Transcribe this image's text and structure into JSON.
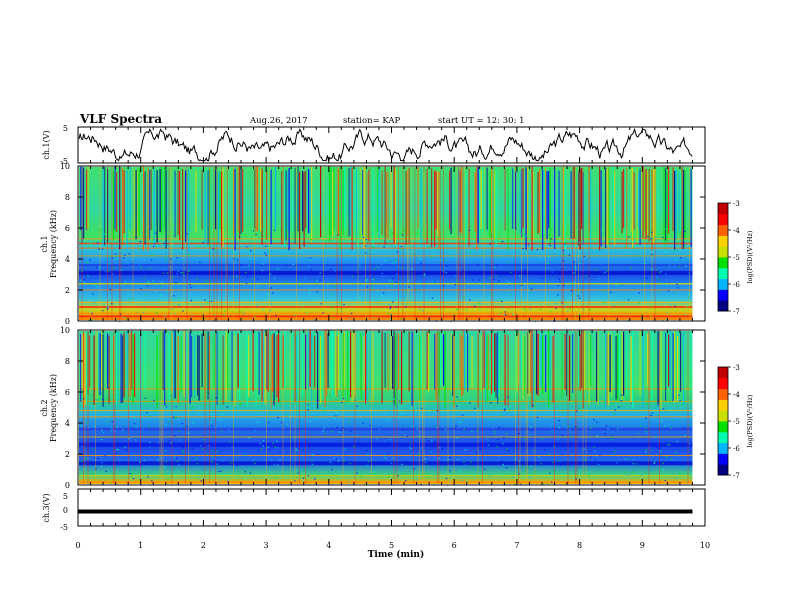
{
  "header": {
    "title": "VLF Spectra",
    "date": "Aug.26, 2017",
    "station": "station= KAP",
    "start": "start UT =   12: 30: 1"
  },
  "chart_data": [
    {
      "type": "line",
      "ylabel": "ch.1(V)",
      "ylim": [
        -5,
        5
      ],
      "yticks": [
        "5",
        "-5"
      ],
      "xlim": [
        0,
        10
      ]
    },
    {
      "type": "heatmap",
      "ylabel": "ch.1\nFrequency (kHz)",
      "ylabel_lines": [
        "ch.1",
        "Frequency (kHz)"
      ],
      "ylim": [
        0,
        10
      ],
      "yticks": [
        "0",
        "2",
        "4",
        "6",
        "8",
        "10"
      ],
      "xlim": [
        0,
        10
      ],
      "colorbar": {
        "label": "log(PSD)(V²/Hz)",
        "ticks": [
          "-3",
          "-4",
          "-5",
          "-6",
          "-7"
        ]
      }
    },
    {
      "type": "heatmap",
      "ylabel": "ch.2\nFrequency (kHz)",
      "ylabel_lines": [
        "ch.2",
        "Frequency (kHz)"
      ],
      "ylim": [
        0,
        10
      ],
      "yticks": [
        "0",
        "2",
        "4",
        "6",
        "8",
        "10"
      ],
      "xlim": [
        0,
        10
      ],
      "colorbar": {
        "label": "log(PSD)(V²/Hz)",
        "ticks": [
          "-3",
          "-4",
          "-5",
          "-6",
          "-7"
        ]
      }
    },
    {
      "type": "line",
      "ylabel": "ch.3(V)",
      "ylim": [
        -5,
        5
      ],
      "yticks": [
        "5",
        "0",
        "-5"
      ],
      "xlim": [
        0,
        10
      ],
      "constant_value": 0
    }
  ],
  "xaxis": {
    "label": "Time  (min)",
    "ticks": [
      "0",
      "1",
      "2",
      "3",
      "4",
      "5",
      "6",
      "7",
      "8",
      "9",
      "10"
    ]
  },
  "colors": {
    "colormap": [
      "#000080",
      "#0000ff",
      "#00b4ff",
      "#00ffb0",
      "#00e000",
      "#c8e000",
      "#ffd000",
      "#ff6000",
      "#ff0000",
      "#c00000"
    ]
  }
}
